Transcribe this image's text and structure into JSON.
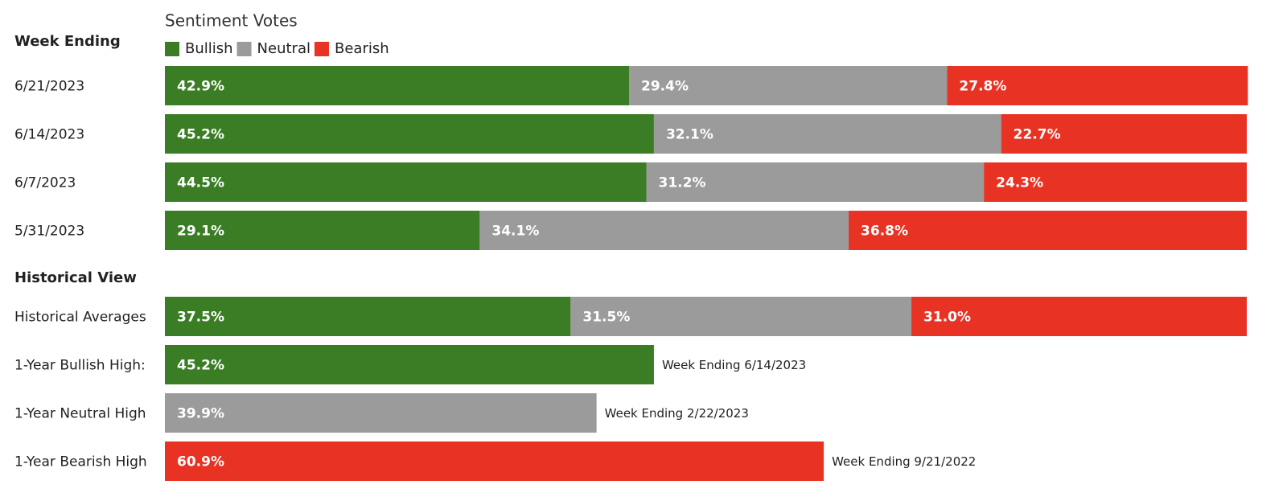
{
  "chart_data": [
    {
      "type": "bar",
      "orientation": "horizontal",
      "stacked": true,
      "title": "Sentiment Votes",
      "row_header": "Week Ending",
      "categories": [
        "6/21/2023",
        "6/14/2023",
        "6/7/2023",
        "5/31/2023"
      ],
      "xlim": [
        0,
        100
      ],
      "series": [
        {
          "name": "Bullish",
          "color": "#3a7d24",
          "values": [
            42.9,
            45.2,
            44.5,
            29.1
          ],
          "value_labels": [
            "42.9%",
            "45.2%",
            "44.5%",
            "29.1%"
          ]
        },
        {
          "name": "Neutral",
          "color": "#9b9b9b",
          "values": [
            29.4,
            32.1,
            31.2,
            34.1
          ],
          "value_labels": [
            "29.4%",
            "32.1%",
            "31.2%",
            "34.1%"
          ]
        },
        {
          "name": "Bearish",
          "color": "#e83324",
          "values": [
            27.8,
            22.7,
            24.3,
            36.8
          ],
          "value_labels": [
            "27.8%",
            "22.7%",
            "24.3%",
            "36.8%"
          ]
        }
      ]
    },
    {
      "type": "bar",
      "orientation": "horizontal",
      "stacked": true,
      "title": "Historical View",
      "categories": [
        "Historical Averages",
        "1-Year Bullish High:",
        "1-Year Neutral High",
        "1-Year Bearish High"
      ],
      "annotations": [
        null,
        "Week Ending 6/14/2023",
        "Week Ending 2/22/2023",
        "Week Ending 9/21/2022"
      ],
      "xlim": [
        0,
        100
      ],
      "series": [
        {
          "color": "#3a7d24",
          "values": [
            37.5,
            45.2,
            null,
            null
          ],
          "value_labels": [
            "37.5%",
            "45.2%",
            null,
            null
          ]
        },
        {
          "color": "#9b9b9b",
          "values": [
            31.5,
            null,
            39.9,
            null
          ],
          "value_labels": [
            "31.5%",
            null,
            "39.9%",
            null
          ]
        },
        {
          "color": "#e83324",
          "values": [
            31.0,
            null,
            null,
            60.9
          ],
          "value_labels": [
            "31.0%",
            null,
            null,
            "60.9%"
          ]
        }
      ]
    }
  ]
}
